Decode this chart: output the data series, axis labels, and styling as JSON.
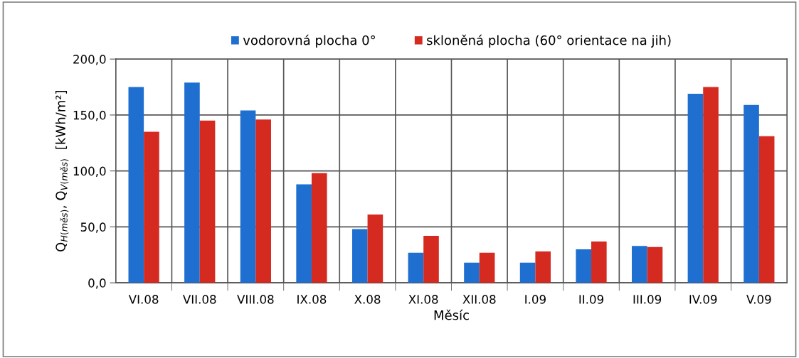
{
  "chart_data": {
    "type": "bar",
    "xlabel": "Měsíc",
    "ylabel": "Q$_{H(měs)}$, Q$_{V(měs)}$  [kWh/m²]",
    "categories": [
      "VI.08",
      "VII.08",
      "VIII.08",
      "IX.08",
      "X.08",
      "XI.08",
      "XII.08",
      "I.09",
      "II.09",
      "III.09",
      "IV.09",
      "V.09"
    ],
    "series": [
      {
        "name": "vodorovná plocha 0°",
        "color": "#1f6fd0",
        "values": [
          175,
          179,
          154,
          88,
          48,
          27,
          18,
          18,
          30,
          33,
          169,
          159
        ]
      },
      {
        "name": "skloněná plocha (60° orientace na jih)",
        "color": "#d42a20",
        "values": [
          135,
          145,
          146,
          98,
          61,
          42,
          27,
          28,
          37,
          32,
          175,
          131
        ]
      }
    ],
    "ylim": [
      0,
      200
    ],
    "yticks": [
      {
        "value": 0,
        "label": "0,0"
      },
      {
        "value": 50,
        "label": "50,0"
      },
      {
        "value": 100,
        "label": "100,0"
      },
      {
        "value": 150,
        "label": "150,0"
      },
      {
        "value": 200,
        "label": "200,0"
      }
    ],
    "grid": true,
    "legend": "top"
  }
}
